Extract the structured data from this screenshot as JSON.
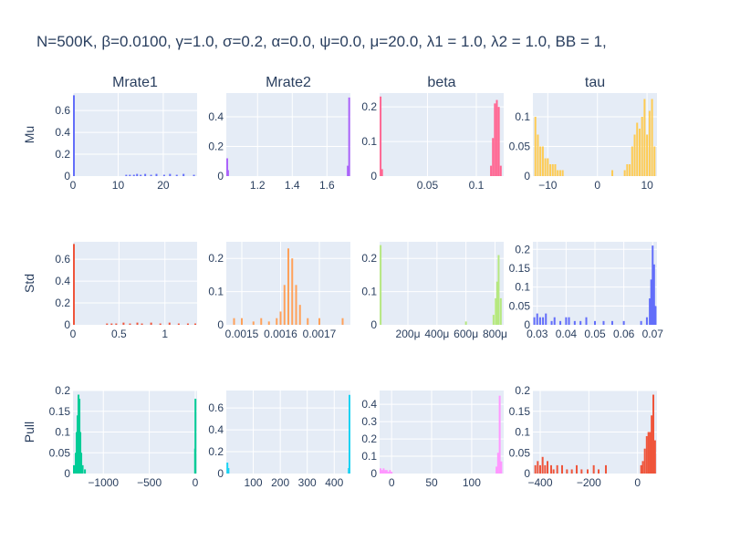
{
  "title": "N=500K, β=0.0100, γ=1.0, σ=0.2,  α=0.0, ψ=0.0, μ=20.0, λ1 = 1.0, λ2 = 1.0, BB = 1,",
  "style": {
    "plot_bg": "#e5ecf6",
    "grid": "#ffffff",
    "text": "#2a3f5f"
  },
  "chart_data": [
    {
      "type": "bar",
      "row": "Mu",
      "column": "Mrate1",
      "color": "#636efa",
      "xlim": [
        0,
        27.5
      ],
      "ylim": [
        0,
        0.76
      ],
      "x_ticks": [
        {
          "v": 0,
          "label": "0"
        },
        {
          "v": 10,
          "label": "10"
        },
        {
          "v": 20,
          "label": "20"
        }
      ],
      "y_ticks": [
        {
          "v": 0,
          "label": "0"
        },
        {
          "v": 0.2,
          "label": "0.2"
        },
        {
          "v": 0.4,
          "label": "0.4"
        },
        {
          "v": 0.6,
          "label": "0.6"
        }
      ],
      "bars": [
        [
          0,
          0.74
        ],
        [
          11.8,
          0.012
        ],
        [
          12.6,
          0.012
        ],
        [
          13.5,
          0.012
        ],
        [
          14.2,
          0.02
        ],
        [
          15.0,
          0.012
        ],
        [
          16.0,
          0.02
        ],
        [
          17.3,
          0.012
        ],
        [
          18.5,
          0.02
        ],
        [
          20.2,
          0.012
        ],
        [
          21.5,
          0.02
        ],
        [
          23.0,
          0.012
        ],
        [
          24.5,
          0.02
        ],
        [
          26.8,
          0.012
        ]
      ]
    },
    {
      "type": "bar",
      "row": "Mu",
      "column": "Mrate2",
      "color": "#ab63fa",
      "xlim": [
        1.02,
        1.735
      ],
      "ylim": [
        0,
        0.56
      ],
      "x_ticks": [
        {
          "v": 1.2,
          "label": "1.2"
        },
        {
          "v": 1.4,
          "label": "1.4"
        },
        {
          "v": 1.6,
          "label": "1.6"
        }
      ],
      "y_ticks": [
        {
          "v": 0,
          "label": "0"
        },
        {
          "v": 0.2,
          "label": "0.2"
        },
        {
          "v": 0.4,
          "label": "0.4"
        }
      ],
      "bars": [
        [
          1.022,
          0.12
        ],
        [
          1.03,
          0.04
        ],
        [
          1.72,
          0.07
        ],
        [
          1.728,
          0.53
        ]
      ]
    },
    {
      "type": "bar",
      "row": "Mu",
      "column": "beta",
      "color": "#ff6692",
      "xlim": [
        0.001,
        0.128
      ],
      "ylim": [
        0,
        0.24
      ],
      "x_ticks": [
        {
          "v": 0.05,
          "label": "0.05"
        },
        {
          "v": 0.1,
          "label": "0.1"
        }
      ],
      "y_ticks": [
        {
          "v": 0,
          "label": "0"
        },
        {
          "v": 0.1,
          "label": "0.1"
        },
        {
          "v": 0.2,
          "label": "0.2"
        }
      ],
      "bars": [
        [
          0.002,
          0.23
        ],
        [
          0.0035,
          0.02
        ],
        [
          0.115,
          0.03
        ],
        [
          0.117,
          0.11
        ],
        [
          0.119,
          0.21
        ],
        [
          0.121,
          0.22
        ],
        [
          0.123,
          0.2
        ],
        [
          0.125,
          0.03
        ]
      ]
    },
    {
      "type": "bar",
      "row": "Mu",
      "column": "tau",
      "color": "#fecb52",
      "xlim": [
        -13,
        12
      ],
      "ylim": [
        0,
        0.14
      ],
      "x_ticks": [
        {
          "v": -10,
          "label": "−10"
        },
        {
          "v": 0,
          "label": "0"
        },
        {
          "v": 10,
          "label": "10"
        }
      ],
      "y_ticks": [
        {
          "v": 0,
          "label": "0"
        },
        {
          "v": 0.05,
          "label": "0.05"
        },
        {
          "v": 0.1,
          "label": "0.1"
        }
      ],
      "bars": [
        [
          -12.5,
          0.1
        ],
        [
          -12,
          0.07
        ],
        [
          -11.5,
          0.05
        ],
        [
          -11,
          0.05
        ],
        [
          -10.5,
          0.03
        ],
        [
          -10,
          0.03
        ],
        [
          -9.5,
          0.02
        ],
        [
          -9,
          0.02
        ],
        [
          -8.5,
          0.02
        ],
        [
          -8,
          0.01
        ],
        [
          -7.5,
          0.01
        ],
        [
          -7,
          0.01
        ],
        [
          3,
          0.01
        ],
        [
          5.5,
          0.01
        ],
        [
          6,
          0.02
        ],
        [
          6.5,
          0.02
        ],
        [
          7,
          0.05
        ],
        [
          7.5,
          0.07
        ],
        [
          8,
          0.09
        ],
        [
          8.5,
          0.08
        ],
        [
          9,
          0.1
        ],
        [
          9.5,
          0.13
        ],
        [
          10,
          0.07
        ],
        [
          10.5,
          0.11
        ],
        [
          11,
          0.13
        ],
        [
          11.5,
          0.05
        ]
      ]
    },
    {
      "type": "bar",
      "row": "Std",
      "column": "Mrate1",
      "color": "#ef553b",
      "xlim": [
        0,
        1.35
      ],
      "ylim": [
        0,
        0.76
      ],
      "x_ticks": [
        {
          "v": 0,
          "label": "0"
        },
        {
          "v": 0.5,
          "label": "0.5"
        },
        {
          "v": 1,
          "label": "1"
        }
      ],
      "y_ticks": [
        {
          "v": 0,
          "label": "0"
        },
        {
          "v": 0.2,
          "label": "0.2"
        },
        {
          "v": 0.4,
          "label": "0.4"
        },
        {
          "v": 0.6,
          "label": "0.6"
        }
      ],
      "bars": [
        [
          0.005,
          0.74
        ],
        [
          0.37,
          0.012
        ],
        [
          0.42,
          0.012
        ],
        [
          0.47,
          0.012
        ],
        [
          0.55,
          0.02
        ],
        [
          0.62,
          0.012
        ],
        [
          0.7,
          0.02
        ],
        [
          0.75,
          0.012
        ],
        [
          0.85,
          0.02
        ],
        [
          0.95,
          0.012
        ],
        [
          1.05,
          0.02
        ],
        [
          1.15,
          0.012
        ],
        [
          1.25,
          0.012
        ],
        [
          1.33,
          0.012
        ]
      ]
    },
    {
      "type": "bar",
      "row": "Std",
      "column": "Mrate2",
      "color": "#ffa15a",
      "xlim": [
        0.00146,
        0.00178
      ],
      "ylim": [
        0,
        0.25
      ],
      "x_ticks": [
        {
          "v": 0.0015,
          "label": "0.0015"
        },
        {
          "v": 0.0016,
          "label": "0.0016"
        },
        {
          "v": 0.0017,
          "label": "0.0017"
        }
      ],
      "y_ticks": [
        {
          "v": 0,
          "label": "0"
        },
        {
          "v": 0.1,
          "label": "0.1"
        },
        {
          "v": 0.2,
          "label": "0.2"
        }
      ],
      "bars": [
        [
          0.00148,
          0.02
        ],
        [
          0.0015,
          0.02
        ],
        [
          0.00153,
          0.01
        ],
        [
          0.00155,
          0.02
        ],
        [
          0.00157,
          0.01
        ],
        [
          0.00159,
          0.02
        ],
        [
          0.0016,
          0.04
        ],
        [
          0.00161,
          0.12
        ],
        [
          0.00162,
          0.23
        ],
        [
          0.00163,
          0.2
        ],
        [
          0.00164,
          0.12
        ],
        [
          0.00165,
          0.06
        ],
        [
          0.00167,
          0.02
        ],
        [
          0.0017,
          0.02
        ],
        [
          0.00176,
          0.02
        ]
      ]
    },
    {
      "type": "bar",
      "row": "Std",
      "column": "beta",
      "color": "#b6e880",
      "xlim": [
        5,
        860
      ],
      "ylim": [
        0,
        0.25
      ],
      "x_ticks": [
        {
          "v": 200,
          "label": "200μ"
        },
        {
          "v": 400,
          "label": "400μ"
        },
        {
          "v": 600,
          "label": "600μ"
        },
        {
          "v": 800,
          "label": "800μ"
        }
      ],
      "y_ticks": [
        {
          "v": 0,
          "label": "0"
        },
        {
          "v": 0.1,
          "label": "0.1"
        },
        {
          "v": 0.2,
          "label": "0.2"
        }
      ],
      "bars": [
        [
          12,
          0.24
        ],
        [
          600,
          0.01
        ],
        [
          790,
          0.03
        ],
        [
          805,
          0.08
        ],
        [
          815,
          0.13
        ],
        [
          825,
          0.21
        ],
        [
          840,
          0.08
        ]
      ]
    },
    {
      "type": "bar",
      "row": "Std",
      "column": "tau",
      "color": "#636efa",
      "xlim": [
        0.0285,
        0.0715
      ],
      "ylim": [
        0,
        0.22
      ],
      "x_ticks": [
        {
          "v": 0.03,
          "label": "0.03"
        },
        {
          "v": 0.04,
          "label": "0.04"
        },
        {
          "v": 0.05,
          "label": "0.05"
        },
        {
          "v": 0.06,
          "label": "0.06"
        },
        {
          "v": 0.07,
          "label": "0.07"
        }
      ],
      "y_ticks": [
        {
          "v": 0,
          "label": "0"
        },
        {
          "v": 0.05,
          "label": "0.05"
        },
        {
          "v": 0.1,
          "label": "0.1"
        },
        {
          "v": 0.15,
          "label": "0.15"
        },
        {
          "v": 0.2,
          "label": "0.2"
        }
      ],
      "bars": [
        [
          0.029,
          0.02
        ],
        [
          0.03,
          0.03
        ],
        [
          0.031,
          0.02
        ],
        [
          0.032,
          0.02
        ],
        [
          0.033,
          0.03
        ],
        [
          0.035,
          0.01
        ],
        [
          0.036,
          0.02
        ],
        [
          0.038,
          0.01
        ],
        [
          0.04,
          0.02
        ],
        [
          0.041,
          0.02
        ],
        [
          0.043,
          0.01
        ],
        [
          0.045,
          0.01
        ],
        [
          0.047,
          0.02
        ],
        [
          0.05,
          0.01
        ],
        [
          0.053,
          0.01
        ],
        [
          0.056,
          0.01
        ],
        [
          0.06,
          0.01
        ],
        [
          0.066,
          0.01
        ],
        [
          0.068,
          0.02
        ],
        [
          0.069,
          0.07
        ],
        [
          0.0695,
          0.12
        ],
        [
          0.07,
          0.21
        ],
        [
          0.0705,
          0.16
        ],
        [
          0.071,
          0.05
        ]
      ]
    },
    {
      "type": "bar",
      "row": "Pull",
      "column": "Mrate1",
      "color": "#00cc96",
      "xlim": [
        -1330,
        20
      ],
      "ylim": [
        0,
        0.2
      ],
      "x_ticks": [
        {
          "v": -1000,
          "label": "−1000"
        },
        {
          "v": -500,
          "label": "−500"
        },
        {
          "v": 0,
          "label": "0"
        }
      ],
      "y_ticks": [
        {
          "v": 0,
          "label": "0"
        },
        {
          "v": 0.05,
          "label": "0.05"
        },
        {
          "v": 0.1,
          "label": "0.1"
        },
        {
          "v": 0.15,
          "label": "0.15"
        },
        {
          "v": 0.2,
          "label": "0.2"
        }
      ],
      "bars": [
        [
          -1320,
          0.02
        ],
        [
          -1300,
          0.05
        ],
        [
          -1290,
          0.1
        ],
        [
          -1280,
          0.14
        ],
        [
          -1270,
          0.19
        ],
        [
          -1260,
          0.18
        ],
        [
          -1250,
          0.1
        ],
        [
          -1240,
          0.05
        ],
        [
          -1225,
          0.02
        ],
        [
          -1200,
          0.01
        ],
        [
          -2,
          0.06
        ],
        [
          2,
          0.18
        ]
      ]
    },
    {
      "type": "bar",
      "row": "Pull",
      "column": "Mrate2",
      "color": "#19d3f3",
      "xlim": [
        0,
        460
      ],
      "ylim": [
        0,
        0.76
      ],
      "x_ticks": [
        {
          "v": 100,
          "label": "100"
        },
        {
          "v": 200,
          "label": "200"
        },
        {
          "v": 300,
          "label": "300"
        },
        {
          "v": 400,
          "label": "400"
        }
      ],
      "y_ticks": [
        {
          "v": 0,
          "label": "0"
        },
        {
          "v": 0.2,
          "label": "0.2"
        },
        {
          "v": 0.4,
          "label": "0.4"
        },
        {
          "v": 0.6,
          "label": "0.6"
        }
      ],
      "bars": [
        [
          4,
          0.1
        ],
        [
          8,
          0.05
        ],
        [
          454,
          0.05
        ],
        [
          458,
          0.72
        ]
      ]
    },
    {
      "type": "bar",
      "row": "Pull",
      "column": "beta",
      "color": "#ff97ff",
      "xlim": [
        -15,
        140
      ],
      "ylim": [
        0,
        0.48
      ],
      "x_ticks": [
        {
          "v": 0,
          "label": "0"
        },
        {
          "v": 50,
          "label": "50"
        },
        {
          "v": 100,
          "label": "100"
        }
      ],
      "y_ticks": [
        {
          "v": 0,
          "label": "0"
        },
        {
          "v": 0.1,
          "label": "0.1"
        },
        {
          "v": 0.2,
          "label": "0.2"
        },
        {
          "v": 0.3,
          "label": "0.3"
        },
        {
          "v": 0.4,
          "label": "0.4"
        }
      ],
      "bars": [
        [
          -14,
          0.03
        ],
        [
          -12,
          0.02
        ],
        [
          -10,
          0.03
        ],
        [
          -8,
          0.02
        ],
        [
          -6,
          0.02
        ],
        [
          -4,
          0.01
        ],
        [
          -2,
          0.02
        ],
        [
          0,
          0.01
        ],
        [
          131,
          0.04
        ],
        [
          133,
          0.12
        ],
        [
          135,
          0.45
        ],
        [
          137,
          0.07
        ]
      ]
    },
    {
      "type": "bar",
      "row": "Pull",
      "column": "tau",
      "color": "#ef553b",
      "xlim": [
        -430,
        80
      ],
      "ylim": [
        0,
        0.2
      ],
      "x_ticks": [
        {
          "v": -400,
          "label": "−400"
        },
        {
          "v": -200,
          "label": "−200"
        },
        {
          "v": 0,
          "label": "0"
        }
      ],
      "y_ticks": [
        {
          "v": 0,
          "label": "0"
        },
        {
          "v": 0.05,
          "label": "0.05"
        },
        {
          "v": 0.1,
          "label": "0.1"
        },
        {
          "v": 0.15,
          "label": "0.15"
        },
        {
          "v": 0.2,
          "label": "0.2"
        }
      ],
      "bars": [
        [
          -420,
          0.02
        ],
        [
          -410,
          0.03
        ],
        [
          -400,
          0.02
        ],
        [
          -390,
          0.04
        ],
        [
          -380,
          0.02
        ],
        [
          -370,
          0.03
        ],
        [
          -355,
          0.02
        ],
        [
          -345,
          0.01
        ],
        [
          -330,
          0.02
        ],
        [
          -310,
          0.02
        ],
        [
          -290,
          0.01
        ],
        [
          -270,
          0.01
        ],
        [
          -250,
          0.02
        ],
        [
          -230,
          0.01
        ],
        [
          -205,
          0.01
        ],
        [
          -180,
          0.02
        ],
        [
          -160,
          0.01
        ],
        [
          -130,
          0.02
        ],
        [
          15,
          0.02
        ],
        [
          22,
          0.03
        ],
        [
          30,
          0.06
        ],
        [
          38,
          0.09
        ],
        [
          45,
          0.1
        ],
        [
          52,
          0.1
        ],
        [
          58,
          0.14
        ],
        [
          65,
          0.19
        ],
        [
          72,
          0.08
        ]
      ]
    }
  ]
}
